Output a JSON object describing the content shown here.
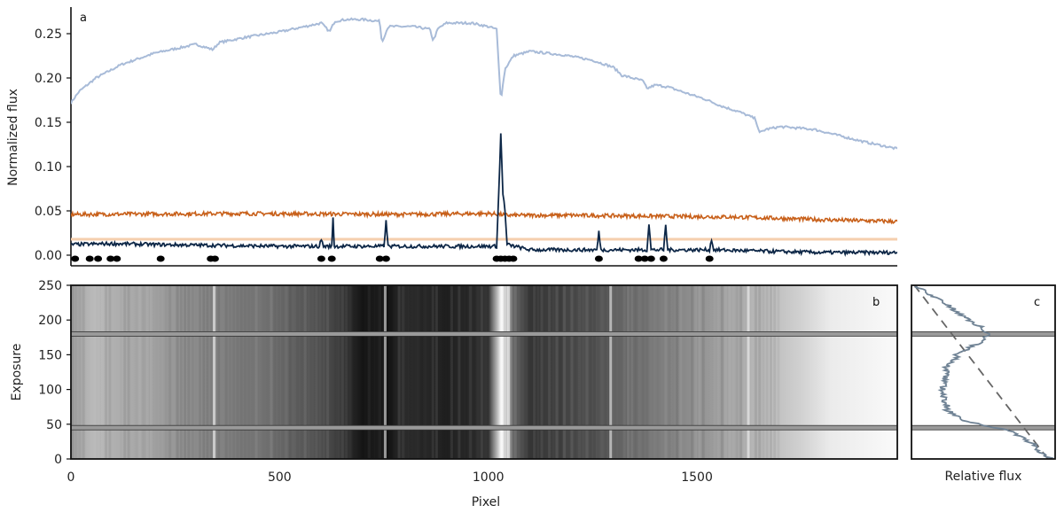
{
  "chart_data": [
    {
      "panel": "a",
      "type": "line",
      "xlim": [
        0,
        1980
      ],
      "ylim": [
        -0.012,
        0.28
      ],
      "ylabel": "Normalized flux",
      "yticks": [
        0.0,
        0.05,
        0.1,
        0.15,
        0.2,
        0.25
      ],
      "ytick_labels": [
        "0.00",
        "0.05",
        "0.10",
        "0.15",
        "0.20",
        "0.25"
      ],
      "colors": {
        "spectrum": "#a8bbd8",
        "error": "#c8601a",
        "noise": "#0d2747",
        "threshold": "#f5cfae",
        "bad": "#000000"
      },
      "series": [
        {
          "key": "spectrum",
          "x": [
            0,
            20,
            60,
            120,
            200,
            300,
            340,
            355,
            420,
            500,
            560,
            600,
            620,
            632,
            660,
            700,
            740,
            745,
            760,
            820,
            860,
            868,
            880,
            900,
            960,
            1000,
            1020,
            1030,
            1040,
            1060,
            1100,
            1180,
            1250,
            1300,
            1320,
            1370,
            1380,
            1400,
            1430,
            1480,
            1520,
            1560,
            1600,
            1640,
            1650,
            1665,
            1700,
            1780,
            1840,
            1900,
            1960,
            1980
          ],
          "y": [
            0.172,
            0.185,
            0.2,
            0.215,
            0.228,
            0.238,
            0.232,
            0.24,
            0.246,
            0.252,
            0.258,
            0.262,
            0.252,
            0.264,
            0.266,
            0.266,
            0.264,
            0.24,
            0.258,
            0.258,
            0.255,
            0.242,
            0.256,
            0.262,
            0.262,
            0.258,
            0.255,
            0.175,
            0.21,
            0.225,
            0.23,
            0.226,
            0.22,
            0.212,
            0.203,
            0.197,
            0.188,
            0.192,
            0.19,
            0.182,
            0.176,
            0.168,
            0.162,
            0.154,
            0.138,
            0.142,
            0.145,
            0.142,
            0.135,
            0.128,
            0.122,
            0.12
          ]
        },
        {
          "key": "error",
          "x": [
            0,
            400,
            800,
            1000,
            1050,
            1200,
            1600,
            1800,
            1980
          ],
          "y": [
            0.046,
            0.047,
            0.046,
            0.047,
            0.045,
            0.045,
            0.043,
            0.04,
            0.038
          ]
        },
        {
          "key": "noise",
          "x": [
            0,
            100,
            200,
            350,
            500,
            595,
            600,
            605,
            625,
            628,
            631,
            750,
            755,
            760,
            1020,
            1025,
            1030,
            1035,
            1040,
            1045,
            1100,
            1260,
            1265,
            1270,
            1360,
            1380,
            1385,
            1390,
            1420,
            1425,
            1430,
            1530,
            1535,
            1540,
            1700,
            1800,
            1900,
            1980
          ],
          "y": [
            0.012,
            0.013,
            0.012,
            0.011,
            0.01,
            0.01,
            0.018,
            0.01,
            0.01,
            0.044,
            0.01,
            0.01,
            0.038,
            0.01,
            0.01,
            0.07,
            0.137,
            0.07,
            0.05,
            0.012,
            0.006,
            0.006,
            0.026,
            0.006,
            0.006,
            0.006,
            0.036,
            0.006,
            0.006,
            0.034,
            0.006,
            0.006,
            0.018,
            0.006,
            0.004,
            0.003,
            0.003,
            0.003
          ]
        },
        {
          "key": "threshold",
          "x": [
            0,
            1980
          ],
          "y": [
            0.018,
            0.018
          ]
        }
      ],
      "bad_pixels": [
        10,
        45,
        65,
        95,
        110,
        215,
        335,
        345,
        600,
        625,
        740,
        755,
        1020,
        1030,
        1040,
        1050,
        1060,
        1265,
        1360,
        1375,
        1390,
        1420,
        1530
      ],
      "panel_label": "a"
    },
    {
      "panel": "b",
      "type": "heatmap",
      "xlabel": "Pixel",
      "ylabel": "Exposure",
      "xlim": [
        0,
        1980
      ],
      "ylim": [
        0,
        250
      ],
      "xticks": [
        0,
        500,
        1000,
        1500
      ],
      "xtick_labels": [
        "0",
        "500",
        "1000",
        "1500"
      ],
      "yticks": [
        0,
        50,
        100,
        150,
        200,
        250
      ],
      "ytick_labels": [
        "0",
        "50",
        "100",
        "150",
        "200",
        "250"
      ],
      "transit_lines": [
        45,
        180
      ],
      "column_brightness": {
        "x": [
          0,
          50,
          150,
          300,
          500,
          640,
          700,
          740,
          750,
          800,
          900,
          1000,
          1030,
          1045,
          1060,
          1100,
          1250,
          1400,
          1600,
          1750,
          1820,
          1980
        ],
        "v": [
          0.62,
          0.72,
          0.66,
          0.55,
          0.42,
          0.25,
          0.08,
          0.12,
          0.06,
          0.18,
          0.12,
          0.2,
          0.95,
          0.8,
          0.4,
          0.2,
          0.32,
          0.48,
          0.66,
          0.82,
          0.92,
          0.98
        ]
      },
      "bright_columns": [
        340,
        750,
        1030,
        1045,
        1290,
        1620
      ],
      "panel_label": "b"
    },
    {
      "panel": "c",
      "type": "line",
      "xlabel": "Relative flux",
      "ylim": [
        0,
        250
      ],
      "transit_lines": [
        45,
        180
      ],
      "series": [
        {
          "key": "observed",
          "x": [
            0.97,
            0.9,
            0.82,
            0.7,
            0.55,
            0.35,
            0.25,
            0.22,
            0.24,
            0.32,
            0.45,
            0.55,
            0.48,
            0.4,
            0.3,
            0.22,
            0.1,
            0.02
          ],
          "y": [
            0,
            10,
            25,
            40,
            47,
            55,
            70,
            100,
            130,
            150,
            165,
            180,
            190,
            200,
            215,
            225,
            240,
            250
          ]
        },
        {
          "key": "model",
          "x": [
            0.95,
            0.02
          ],
          "y": [
            0,
            250
          ]
        }
      ],
      "panel_label": "c"
    }
  ]
}
